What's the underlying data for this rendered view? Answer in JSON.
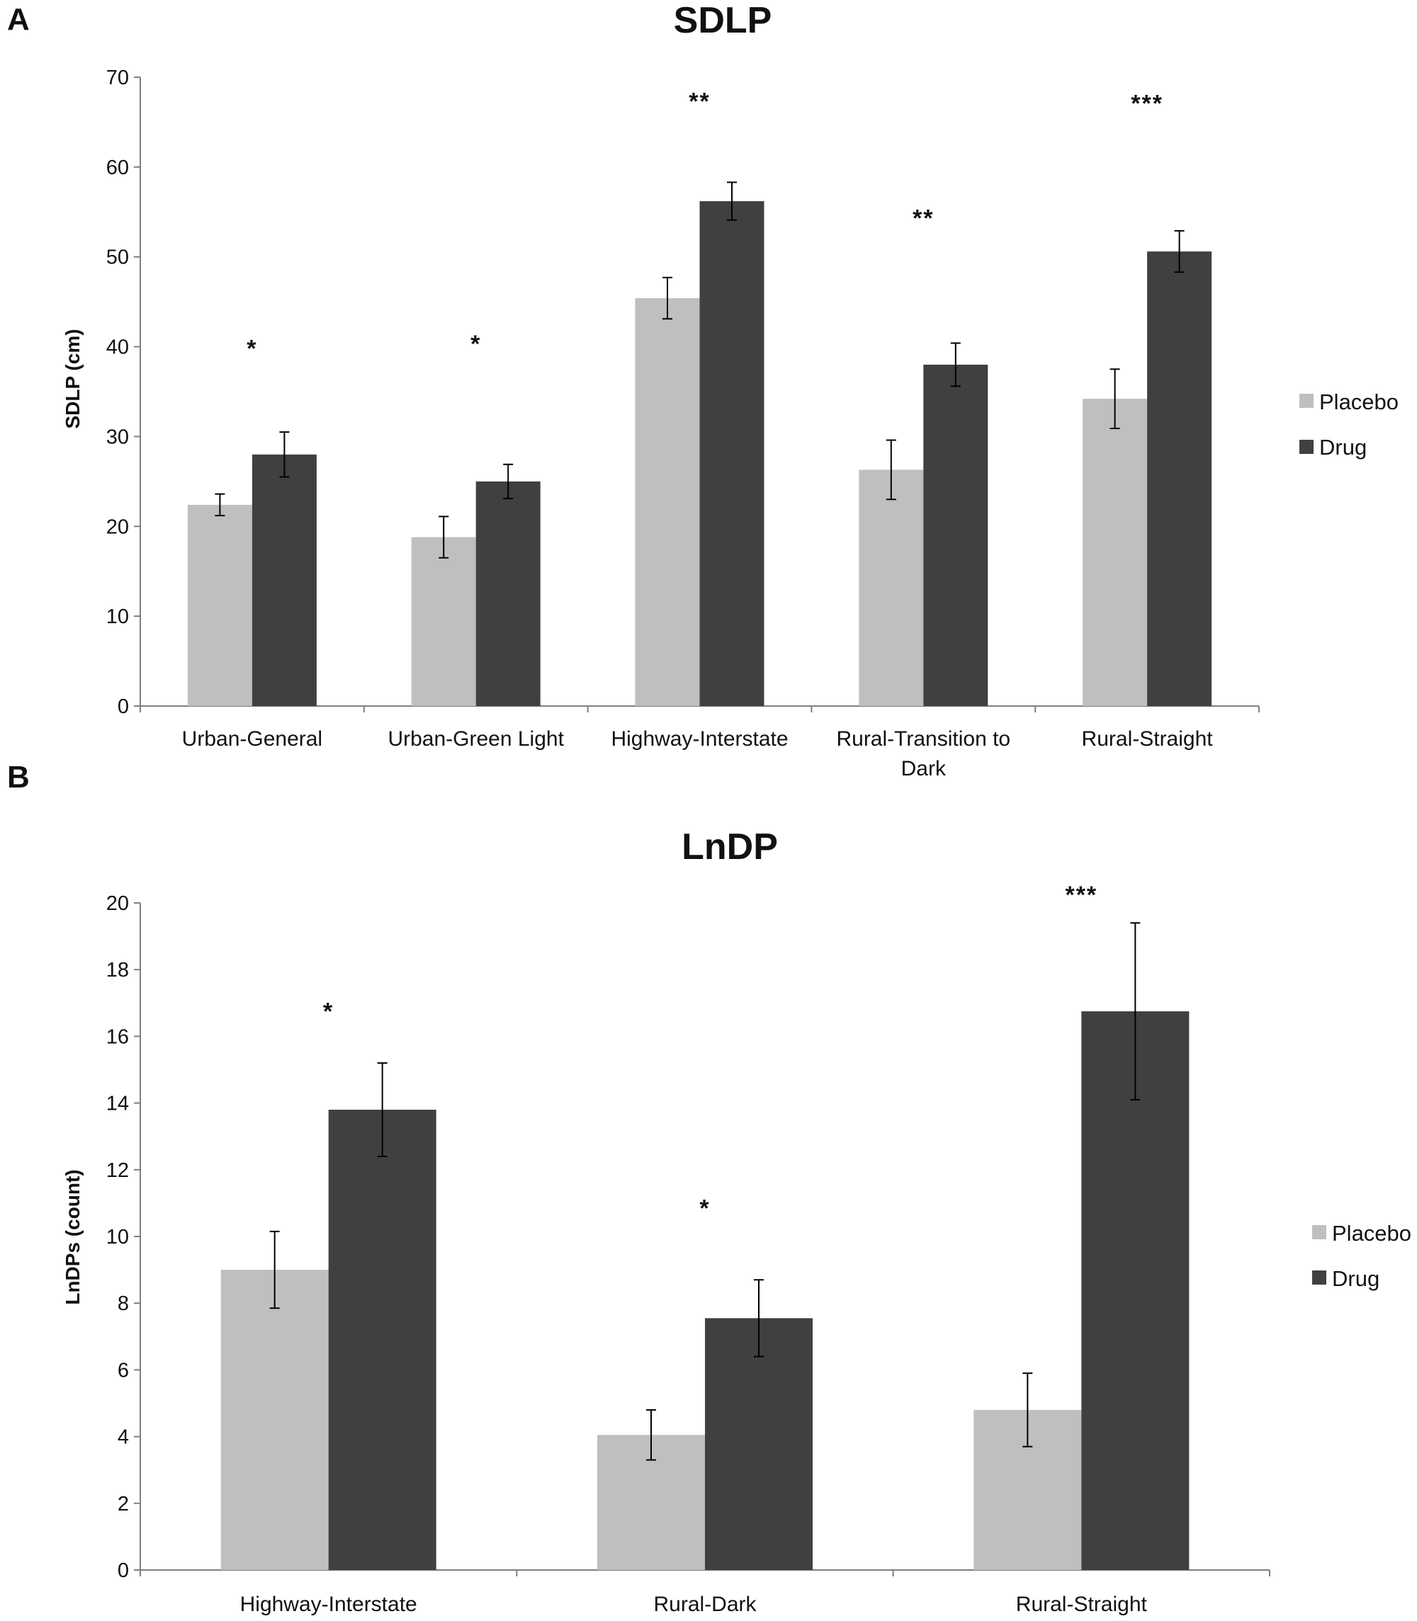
{
  "figure": {
    "panels": [
      "A",
      "B"
    ]
  },
  "colors": {
    "placebo": "#bfbfbf",
    "drug": "#404040",
    "axis": "#7f7f7f",
    "error_bar": "#000000"
  },
  "chart_data": [
    {
      "panel": "A",
      "type": "bar",
      "title": "SDLP",
      "xlabel": "",
      "ylabel": "SDLP (cm)",
      "ylim": [
        0,
        70
      ],
      "yticks": [
        0,
        10,
        20,
        30,
        40,
        50,
        60,
        70
      ],
      "grid": false,
      "legend_position": "right",
      "categories": [
        [
          "Urban-General"
        ],
        [
          "Urban-Green Light"
        ],
        [
          "Highway-Interstate"
        ],
        [
          "Rural-Transition to",
          "Dark"
        ],
        [
          "Rural-Straight"
        ]
      ],
      "series": [
        {
          "name": "Placebo",
          "values": [
            22.4,
            18.8,
            45.4,
            26.3,
            34.2
          ],
          "errors": [
            1.2,
            2.3,
            2.3,
            3.3,
            3.3
          ]
        },
        {
          "name": "Drug",
          "values": [
            28.0,
            25.0,
            56.2,
            38.0,
            50.6
          ],
          "errors": [
            2.5,
            1.9,
            2.1,
            2.4,
            2.3
          ]
        }
      ],
      "significance": [
        "*",
        "*",
        "**",
        "**",
        "***"
      ],
      "significance_y": [
        40,
        40.5,
        67.5,
        54.5,
        67.3
      ]
    },
    {
      "panel": "B",
      "type": "bar",
      "title": "LnDP",
      "xlabel": "",
      "ylabel": "LnDPs (count)",
      "ylim": [
        0,
        20
      ],
      "yticks": [
        0,
        2,
        4,
        6,
        8,
        10,
        12,
        14,
        16,
        18,
        20
      ],
      "grid": false,
      "legend_position": "right",
      "categories": [
        [
          "Highway-Interstate"
        ],
        [
          "Rural-Dark"
        ],
        [
          "Rural-Straight"
        ]
      ],
      "series": [
        {
          "name": "Placebo",
          "values": [
            9.0,
            4.05,
            4.8
          ],
          "errors": [
            1.15,
            0.75,
            1.1
          ]
        },
        {
          "name": "Drug",
          "values": [
            13.8,
            7.55,
            16.75
          ],
          "errors": [
            1.4,
            1.15,
            2.65
          ]
        }
      ],
      "significance": [
        "*",
        "*",
        "***"
      ],
      "significance_y": [
        16.8,
        10.9,
        20.3
      ]
    }
  ]
}
